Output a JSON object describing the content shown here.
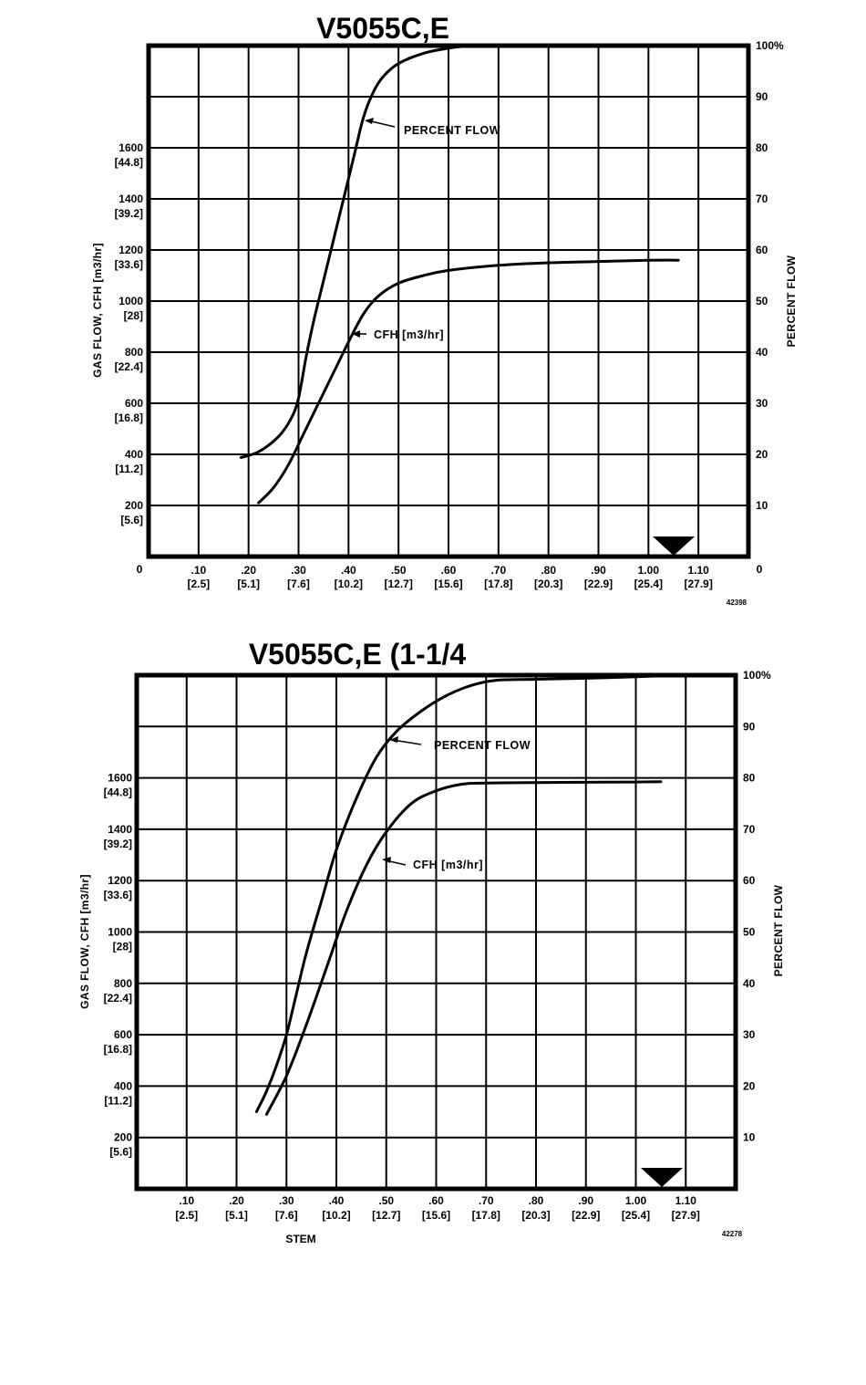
{
  "page": {
    "background": "#ffffff",
    "ink": "#000000"
  },
  "charts": [
    {
      "title": "V5055C,E",
      "figure_number": "42398",
      "y_left_label": "GAS FLOW, CFH [m3/hr]",
      "y_right_label": "PERCENT FLOW",
      "x_label": "",
      "x_zero_label": "0",
      "x_right_zero_label": "0",
      "x_ticks": [
        {
          "v": ".10",
          "m": "[2.5]"
        },
        {
          "v": ".20",
          "m": "[5.1]"
        },
        {
          "v": ".30",
          "m": "[7.6]"
        },
        {
          "v": ".40",
          "m": "[10.2]"
        },
        {
          "v": ".50",
          "m": "[12.7]"
        },
        {
          "v": ".60",
          "m": "[15.6]"
        },
        {
          "v": ".70",
          "m": "[17.8]"
        },
        {
          "v": ".80",
          "m": "[20.3]"
        },
        {
          "v": ".90",
          "m": "[22.9]"
        },
        {
          "v": "1.00",
          "m": "[25.4]"
        },
        {
          "v": "1.10",
          "m": "[27.9]"
        }
      ],
      "y_left_ticks": [
        {
          "v": "1600",
          "m": "[44.8]"
        },
        {
          "v": "1400",
          "m": "[39.2]"
        },
        {
          "v": "1200",
          "m": "[33.6]"
        },
        {
          "v": "1000",
          "m": "[28]"
        },
        {
          "v": "800",
          "m": "[22.4]"
        },
        {
          "v": "600",
          "m": "[16.8]"
        },
        {
          "v": "400",
          "m": "[11.2]"
        },
        {
          "v": "200",
          "m": "[5.6]"
        }
      ],
      "y_right_ticks": [
        "100%",
        "90",
        "80",
        "70",
        "60",
        "50",
        "40",
        "30",
        "20",
        "10"
      ],
      "annotations": {
        "percent": "PERCENT FLOW",
        "cfh": "CFH [m3/hr]"
      }
    },
    {
      "title": "V5055C,E (1-1/4",
      "figure_number": "42278",
      "y_left_label": "GAS FLOW, CFH [m3/hr]",
      "y_right_label": "PERCENT FLOW",
      "x_label": "STEM",
      "x_zero_label": "",
      "x_right_zero_label": "",
      "x_ticks": [
        {
          "v": ".10",
          "m": "[2.5]"
        },
        {
          "v": ".20",
          "m": "[5.1]"
        },
        {
          "v": ".30",
          "m": "[7.6]"
        },
        {
          "v": ".40",
          "m": "[10.2]"
        },
        {
          "v": ".50",
          "m": "[12.7]"
        },
        {
          "v": ".60",
          "m": "[15.6]"
        },
        {
          "v": ".70",
          "m": "[17.8]"
        },
        {
          "v": ".80",
          "m": "[20.3]"
        },
        {
          "v": ".90",
          "m": "[22.9]"
        },
        {
          "v": "1.00",
          "m": "[25.4]"
        },
        {
          "v": "1.10",
          "m": "[27.9]"
        }
      ],
      "y_left_ticks": [
        {
          "v": "1600",
          "m": "[44.8]"
        },
        {
          "v": "1400",
          "m": "[39.2]"
        },
        {
          "v": "1200",
          "m": "[33.6]"
        },
        {
          "v": "1000",
          "m": "[28]"
        },
        {
          "v": "800",
          "m": "[22.4]"
        },
        {
          "v": "600",
          "m": "[16.8]"
        },
        {
          "v": "400",
          "m": "[11.2]"
        },
        {
          "v": "200",
          "m": "[5.6]"
        }
      ],
      "y_right_ticks": [
        "100%",
        "90",
        "80",
        "70",
        "60",
        "50",
        "40",
        "30",
        "20",
        "10"
      ],
      "annotations": {
        "percent": "PERCENT FLOW",
        "cfh": "CFH [m3/hr]"
      }
    }
  ],
  "chart_data": [
    {
      "type": "line",
      "title": "V5055C,E",
      "xlabel": "",
      "ylabel": "GAS FLOW, CFH [m3/hr]",
      "y2label": "PERCENT FLOW",
      "xlim": [
        0,
        1.2
      ],
      "ylim": [
        0,
        2000
      ],
      "y2lim": [
        0,
        100
      ],
      "grid": true,
      "max_stem_marker": 1.05,
      "series": [
        {
          "name": "PERCENT FLOW",
          "axis": "right",
          "points": [
            [
              0.185,
              19.4
            ],
            [
              0.22,
              20.5
            ],
            [
              0.26,
              23.5
            ],
            [
              0.285,
              27
            ],
            [
              0.3,
              31
            ],
            [
              0.315,
              39
            ],
            [
              0.33,
              46
            ],
            [
              0.35,
              54
            ],
            [
              0.37,
              62
            ],
            [
              0.39,
              70
            ],
            [
              0.41,
              78
            ],
            [
              0.43,
              86
            ],
            [
              0.45,
              91
            ],
            [
              0.47,
              94
            ],
            [
              0.5,
              96.5
            ],
            [
              0.55,
              98.5
            ],
            [
              0.6,
              99.5
            ],
            [
              0.65,
              100
            ],
            [
              0.69,
              100
            ]
          ]
        },
        {
          "name": "CFH [m3/hr]",
          "axis": "left",
          "points": [
            [
              0.22,
              210
            ],
            [
              0.25,
              270
            ],
            [
              0.28,
              360
            ],
            [
              0.31,
              480
            ],
            [
              0.34,
              600
            ],
            [
              0.37,
              720
            ],
            [
              0.4,
              840
            ],
            [
              0.43,
              950
            ],
            [
              0.46,
              1020
            ],
            [
              0.5,
              1070
            ],
            [
              0.55,
              1100
            ],
            [
              0.6,
              1120
            ],
            [
              0.7,
              1140
            ],
            [
              0.8,
              1150
            ],
            [
              0.9,
              1155
            ],
            [
              1.0,
              1160
            ],
            [
              1.06,
              1160
            ]
          ]
        }
      ]
    },
    {
      "type": "line",
      "title": "V5055C,E (1-1/4",
      "xlabel": "STEM",
      "ylabel": "GAS FLOW, CFH [m3/hr]",
      "y2label": "PERCENT FLOW",
      "xlim": [
        0,
        1.2
      ],
      "ylim": [
        0,
        2000
      ],
      "y2lim": [
        0,
        100
      ],
      "grid": true,
      "max_stem_marker": 1.05,
      "series": [
        {
          "name": "PERCENT FLOW",
          "axis": "right",
          "points": [
            [
              0.24,
              15
            ],
            [
              0.26,
              19
            ],
            [
              0.28,
              24
            ],
            [
              0.3,
              30
            ],
            [
              0.32,
              38
            ],
            [
              0.34,
              46
            ],
            [
              0.37,
              56
            ],
            [
              0.4,
              66
            ],
            [
              0.44,
              76
            ],
            [
              0.48,
              84
            ],
            [
              0.52,
              89
            ],
            [
              0.57,
              93
            ],
            [
              0.62,
              96
            ],
            [
              0.67,
              98
            ],
            [
              0.72,
              99
            ],
            [
              0.8,
              99.2
            ],
            [
              0.9,
              99.4
            ],
            [
              1.0,
              99.7
            ],
            [
              1.1,
              100
            ]
          ]
        },
        {
          "name": "CFH [m3/hr]",
          "axis": "left",
          "points": [
            [
              0.26,
              290
            ],
            [
              0.3,
              440
            ],
            [
              0.34,
              640
            ],
            [
              0.38,
              860
            ],
            [
              0.42,
              1080
            ],
            [
              0.46,
              1260
            ],
            [
              0.5,
              1390
            ],
            [
              0.55,
              1500
            ],
            [
              0.6,
              1550
            ],
            [
              0.65,
              1575
            ],
            [
              0.7,
              1580
            ],
            [
              0.8,
              1582
            ],
            [
              0.9,
              1583
            ],
            [
              1.0,
              1584
            ],
            [
              1.05,
              1585
            ]
          ]
        }
      ]
    }
  ]
}
